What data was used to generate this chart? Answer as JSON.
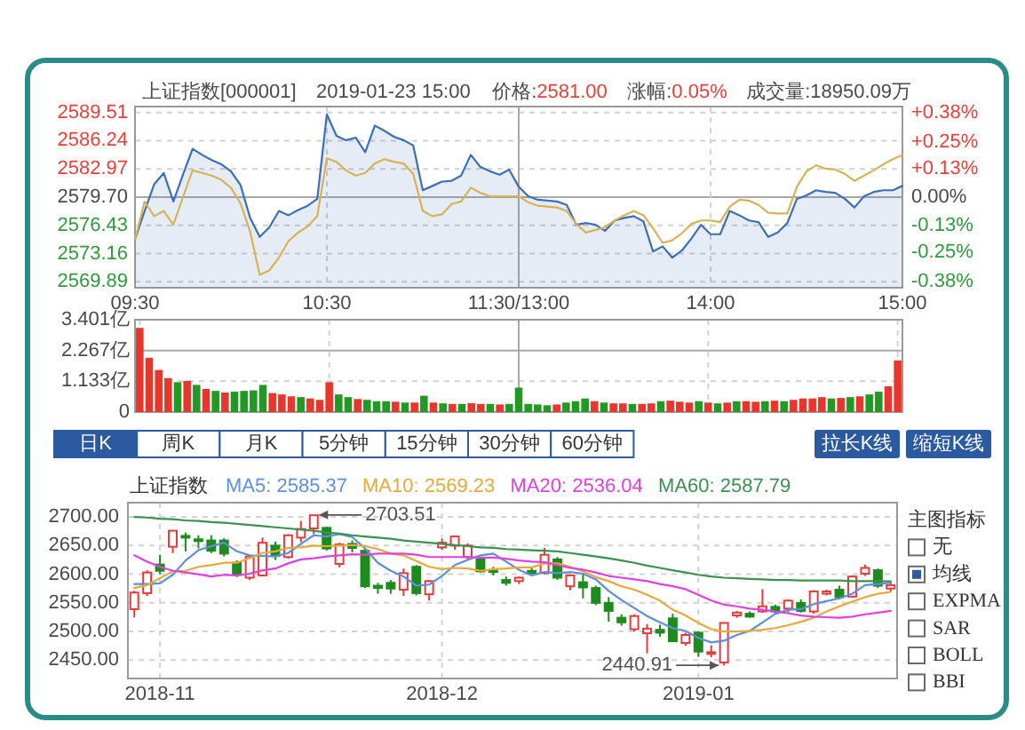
{
  "chart_data": [
    {
      "type": "line",
      "title": "上证指数[000001]",
      "annotations": [
        "2019-01-23 15:00",
        "价格:2581.00",
        "涨幅:0.05%",
        "成交量:18950.09万"
      ],
      "categories": [
        "09:30",
        null,
        null,
        null,
        null,
        null,
        null,
        null,
        null,
        null,
        null,
        null,
        null,
        null,
        null,
        null,
        null,
        null,
        null,
        null,
        "10:30",
        null,
        null,
        null,
        null,
        null,
        null,
        null,
        null,
        null,
        null,
        null,
        null,
        null,
        null,
        null,
        null,
        null,
        null,
        null,
        "11:30/13:00",
        null,
        null,
        null,
        null,
        null,
        null,
        null,
        null,
        null,
        null,
        null,
        null,
        null,
        null,
        null,
        null,
        null,
        null,
        null,
        "14:00",
        null,
        null,
        null,
        null,
        null,
        null,
        null,
        null,
        null,
        null,
        null,
        null,
        null,
        null,
        null,
        null,
        null,
        null,
        null,
        "15:00"
      ],
      "ylim": [
        2569.2,
        2590.2
      ],
      "yticks": [
        2569.89,
        2573.16,
        2576.43,
        {
          "value": 2579.7,
          "label": "2579.70"
        },
        2582.97,
        2586.24,
        2589.51
      ],
      "y2lim": [
        -0.41,
        0.41
      ],
      "y2ticks": [
        {
          "value": -0.38,
          "label": "-0.38%"
        },
        {
          "value": -0.25,
          "label": "-0.25%"
        },
        {
          "value": -0.13,
          "label": "-0.13%"
        },
        {
          "value": 0,
          "label": "0.00%"
        },
        {
          "value": 0.13,
          "label": "+0.13%"
        },
        {
          "value": 0.25,
          "label": "+0.25%"
        },
        {
          "value": 0.38,
          "label": "+0.38%"
        }
      ],
      "grid": true,
      "series": [
        {
          "type": "area",
          "color": "#3b6fb6",
          "values": [
            2574.8,
            2578.1,
            2581.2,
            2582.5,
            2579.2,
            2582.3,
            2585.3,
            2584.6,
            2584.0,
            2583.5,
            2582.7,
            2581.1,
            2577.3,
            2575.1,
            2576.2,
            2578.1,
            2577.6,
            2578.2,
            2578.7,
            2579.5,
            2589.3,
            2586.8,
            2586.3,
            2586.6,
            2584.9,
            2588.0,
            2587.4,
            2586.7,
            2586.3,
            2585.7,
            2580.5,
            2581.0,
            2581.5,
            2581.6,
            2582.2,
            2584.6,
            2583.2,
            2582.7,
            2582.3,
            2582.9,
            2580.9,
            2579.8,
            2579.4,
            2579.3,
            2579.2,
            2578.8,
            2576.5,
            2576.7,
            2576.5,
            2575.8,
            2577.0,
            2577.3,
            2577.5,
            2576.9,
            2573.4,
            2574.0,
            2572.7,
            2573.5,
            2574.9,
            2576.5,
            2575.4,
            2575.4,
            2578.1,
            2577.6,
            2577.0,
            2576.8,
            2575.1,
            2575.6,
            2576.7,
            2579.5,
            2579.9,
            2580.5,
            2580.3,
            2580.2,
            2579.5,
            2578.5,
            2579.8,
            2580.3,
            2580.5,
            2580.5,
            2581.0
          ]
        },
        {
          "type": "line",
          "color": "#d9b255",
          "values": [
            2574.8,
            2579.2,
            2577.5,
            2578.1,
            2576.5,
            2579.7,
            2582.8,
            2582.5,
            2582.2,
            2581.7,
            2580.8,
            2579.0,
            2575.7,
            2570.7,
            2571.2,
            2572.7,
            2574.6,
            2575.6,
            2576.3,
            2577.5,
            2584.2,
            2583.8,
            2582.8,
            2582.2,
            2582.5,
            2583.6,
            2584.1,
            2583.8,
            2583.6,
            2582.4,
            2578.1,
            2577.5,
            2577.7,
            2578.9,
            2579.2,
            2580.8,
            2580.2,
            2579.8,
            2579.8,
            2579.8,
            2579.8,
            2579.1,
            2578.7,
            2578.6,
            2578.5,
            2578.1,
            2576.6,
            2575.6,
            2575.9,
            2576.2,
            2577.0,
            2577.6,
            2578.1,
            2577.6,
            2576.1,
            2574.4,
            2574.7,
            2575.5,
            2576.6,
            2577.0,
            2577.0,
            2576.8,
            2578.6,
            2579.4,
            2579.3,
            2578.8,
            2577.9,
            2577.8,
            2577.8,
            2580.9,
            2582.7,
            2583.4,
            2583.0,
            2582.9,
            2582.4,
            2581.6,
            2582.2,
            2582.8,
            2583.5,
            2584.1,
            2584.6
          ]
        }
      ]
    },
    {
      "type": "bar",
      "tick_labels": "y",
      "grid": true,
      "categories": [
        null,
        null,
        null,
        null,
        null,
        null,
        null,
        null,
        null,
        null,
        null,
        null,
        null,
        null,
        null,
        null,
        null,
        null,
        null,
        null,
        null,
        null,
        null,
        null,
        null,
        null,
        null,
        null,
        null,
        null,
        null,
        null,
        null,
        null,
        null,
        null,
        null,
        null,
        null,
        null,
        null,
        null,
        null,
        null,
        null,
        null,
        null,
        null,
        null,
        null,
        null,
        null,
        null,
        null,
        null,
        null,
        null,
        null,
        null,
        null,
        null,
        null,
        null,
        null,
        null,
        null,
        null,
        null,
        null,
        null,
        null,
        null,
        null,
        null,
        null,
        null,
        null,
        null,
        null,
        null,
        null
      ],
      "ylim": [
        0,
        3.401
      ],
      "yticks": [
        0,
        {
          "value": 1.133,
          "label": "1.133亿"
        },
        {
          "value": 2.267,
          "label": "2.267亿"
        },
        {
          "value": 3.401,
          "label": "3.401亿"
        }
      ],
      "values": [
        3.1,
        2.0,
        1.55,
        1.25,
        1.1,
        1.15,
        1.0,
        0.85,
        0.78,
        0.72,
        0.75,
        0.78,
        0.8,
        1.0,
        0.7,
        0.65,
        0.58,
        0.55,
        0.5,
        0.45,
        1.1,
        0.65,
        0.55,
        0.48,
        0.45,
        0.4,
        0.4,
        0.38,
        0.35,
        0.35,
        0.6,
        0.35,
        0.32,
        0.3,
        0.3,
        0.33,
        0.3,
        0.3,
        0.28,
        0.3,
        0.9,
        0.3,
        0.28,
        0.25,
        0.28,
        0.35,
        0.4,
        0.5,
        0.4,
        0.35,
        0.32,
        0.32,
        0.3,
        0.3,
        0.32,
        0.4,
        0.42,
        0.38,
        0.35,
        0.4,
        0.35,
        0.32,
        0.35,
        0.4,
        0.4,
        0.38,
        0.4,
        0.42,
        0.4,
        0.45,
        0.5,
        0.5,
        0.55,
        0.5,
        0.52,
        0.55,
        0.58,
        0.65,
        0.75,
        0.95,
        1.9
      ],
      "colors": [
        "#e8362d",
        "#e8362d",
        "#e8362d",
        "#e8362d",
        "#229922",
        "#e8362d",
        "#229922",
        "#e8362d",
        "#229922",
        "#e8362d",
        "#229922",
        "#229922",
        "#229922",
        "#229922",
        "#e8362d",
        "#e8362d",
        "#e8362d",
        "#229922",
        "#e8362d",
        "#e8362d",
        "#e8362d",
        "#229922",
        "#229922",
        "#e8362d",
        "#229922",
        "#229922",
        "#229922",
        "#e8362d",
        "#229922",
        "#e8362d",
        "#229922",
        "#e8362d",
        "#229922",
        "#e8362d",
        "#229922",
        "#e8362d",
        "#e8362d",
        "#229922",
        "#e8362d",
        "#229922",
        "#229922",
        "#229922",
        "#229922",
        "#229922",
        "#e8362d",
        "#229922",
        "#229922",
        "#229922",
        "#e8362d",
        "#229922",
        "#e8362d",
        "#e8362d",
        "#229922",
        "#e8362d",
        "#e8362d",
        "#229922",
        "#e8362d",
        "#e8362d",
        "#e8362d",
        "#229922",
        "#e8362d",
        "#229922",
        "#e8362d",
        "#229922",
        "#e8362d",
        "#e8362d",
        "#229922",
        "#e8362d",
        "#229922",
        "#e8362d",
        "#e8362d",
        "#e8362d",
        "#e8362d",
        "#229922",
        "#e8362d",
        "#229922",
        "#e8362d",
        "#229922",
        "#229922",
        "#e8362d",
        "#e8362d"
      ]
    },
    {
      "type": "candlestick",
      "title": "上证指数",
      "grid": true,
      "legend": "top",
      "categories": [
        null,
        null,
        "2018-11",
        null,
        null,
        null,
        null,
        null,
        null,
        null,
        null,
        null,
        null,
        null,
        null,
        null,
        null,
        null,
        null,
        null,
        null,
        null,
        null,
        null,
        "2018-12",
        null,
        null,
        null,
        null,
        null,
        null,
        null,
        null,
        null,
        null,
        null,
        null,
        null,
        null,
        null,
        null,
        null,
        null,
        null,
        "2019-01",
        null,
        null,
        null,
        null,
        null,
        null,
        null,
        null,
        null,
        null,
        null,
        null,
        null,
        null,
        null
      ],
      "ylim": [
        2418,
        2725
      ],
      "yticks": [
        {
          "value": 2450,
          "label": "2450.00"
        },
        {
          "value": 2500,
          "label": "2500.00"
        },
        {
          "value": 2550,
          "label": "2550.00"
        },
        {
          "value": 2600,
          "label": "2600.00"
        },
        {
          "value": 2650,
          "label": "2650.00"
        },
        {
          "value": 2700,
          "label": "2700.00"
        }
      ],
      "annotations": [
        "2703.51",
        "2440.91"
      ],
      "series": [
        {
          "type": "candlestick",
          "ohlc": [
            [
              2539,
              2571,
              2525,
              2568
            ],
            [
              2567,
              2607,
              2562,
              2603
            ],
            [
              2617,
              2634,
              2600,
              2606
            ],
            [
              2648,
              2677,
              2637,
              2676
            ],
            [
              2667,
              2673,
              2640,
              2665
            ],
            [
              2661,
              2668,
              2645,
              2659
            ],
            [
              2659,
              2668,
              2637,
              2641
            ],
            [
              2659,
              2663,
              2631,
              2636
            ],
            [
              2620,
              2624,
              2595,
              2599
            ],
            [
              2594,
              2632,
              2590,
              2631
            ],
            [
              2598,
              2664,
              2596,
              2655
            ],
            [
              2650,
              2657,
              2625,
              2632
            ],
            [
              2630,
              2670,
              2627,
              2668
            ],
            [
              2664,
              2693,
              2656,
              2679
            ],
            [
              2680,
              2703.51,
              2670,
              2703
            ],
            [
              2681,
              2683,
              2641,
              2645
            ],
            [
              2618,
              2655,
              2612,
              2652
            ],
            [
              2653,
              2659,
              2638,
              2646
            ],
            [
              2641,
              2645,
              2576,
              2579
            ],
            [
              2580,
              2585,
              2566,
              2576
            ],
            [
              2585,
              2590,
              2566,
              2575
            ],
            [
              2573,
              2610,
              2562,
              2602
            ],
            [
              2613,
              2616,
              2563,
              2567
            ],
            [
              2565,
              2590,
              2554,
              2588
            ],
            [
              2647,
              2662,
              2643,
              2655
            ],
            [
              2650,
              2667,
              2643,
              2666
            ],
            [
              2630,
              2654,
              2626,
              2650
            ],
            [
              2626,
              2630,
              2603,
              2605
            ],
            [
              2607,
              2613,
              2598,
              2606
            ],
            [
              2590,
              2596,
              2580,
              2585
            ],
            [
              2588,
              2596,
              2583,
              2594
            ],
            [
              2606,
              2612,
              2598,
              2602
            ],
            [
              2602,
              2646,
              2600,
              2634
            ],
            [
              2626,
              2630,
              2590,
              2594
            ],
            [
              2579,
              2600,
              2572,
              2598
            ],
            [
              2586,
              2600,
              2558,
              2577
            ],
            [
              2576,
              2580,
              2546,
              2550
            ],
            [
              2550,
              2560,
              2517,
              2536
            ],
            [
              2524,
              2530,
              2510,
              2516
            ],
            [
              2504,
              2530,
              2500,
              2527
            ],
            [
              2497,
              2513,
              2462,
              2505
            ],
            [
              2503,
              2512,
              2491,
              2498
            ],
            [
              2523,
              2531,
              2482,
              2483
            ],
            [
              2480,
              2498,
              2475,
              2494
            ],
            [
              2498,
              2500,
              2456,
              2465
            ],
            [
              2461,
              2476,
              2455,
              2464
            ],
            [
              2446,
              2515,
              2440.91,
              2515
            ],
            [
              2528,
              2536,
              2524,
              2533
            ],
            [
              2531,
              2535,
              2524,
              2526
            ],
            [
              2535,
              2574,
              2533,
              2544
            ],
            [
              2543,
              2547,
              2530,
              2535
            ],
            [
              2540,
              2556,
              2533,
              2554
            ],
            [
              2550,
              2556,
              2533,
              2536
            ],
            [
              2535,
              2572,
              2531,
              2570
            ],
            [
              2566,
              2573,
              2563,
              2570
            ],
            [
              2573,
              2580,
              2556,
              2560
            ],
            [
              2561,
              2598,
              2559,
              2596
            ],
            [
              2601,
              2617,
              2597,
              2611
            ],
            [
              2607,
              2610,
              2576,
              2580
            ],
            [
              2575,
              2587,
              2570,
              2581
            ]
          ],
          "colors": [
            "#e83a3a",
            "#e83a3a",
            "#1d8c1d",
            "#e83a3a",
            "#1d8c1d",
            "#1d8c1d",
            "#1d8c1d",
            "#1d8c1d",
            "#1d8c1d",
            "#e83a3a",
            "#e83a3a",
            "#1d8c1d",
            "#e83a3a",
            "#e83a3a",
            "#e83a3a",
            "#1d8c1d",
            "#e83a3a",
            "#1d8c1d",
            "#1d8c1d",
            "#1d8c1d",
            "#1d8c1d",
            "#e83a3a",
            "#1d8c1d",
            "#e83a3a",
            "#e83a3a",
            "#e83a3a",
            "#e83a3a",
            "#1d8c1d",
            "#1d8c1d",
            "#1d8c1d",
            "#e83a3a",
            "#1d8c1d",
            "#e83a3a",
            "#1d8c1d",
            "#e83a3a",
            "#1d8c1d",
            "#1d8c1d",
            "#1d8c1d",
            "#1d8c1d",
            "#e83a3a",
            "#e83a3a",
            "#1d8c1d",
            "#1d8c1d",
            "#e83a3a",
            "#1d8c1d",
            "#e83a3a",
            "#e83a3a",
            "#e83a3a",
            "#1d8c1d",
            "#e83a3a",
            "#1d8c1d",
            "#e83a3a",
            "#1d8c1d",
            "#e83a3a",
            "#e83a3a",
            "#1d8c1d",
            "#e83a3a",
            "#e83a3a",
            "#1d8c1d",
            "#e83a3a"
          ]
        },
        {
          "type": "line",
          "name": "MA5: 2585.37",
          "color": "#5b8fe0",
          "values": [
            2583,
            2583,
            2584,
            2599,
            2624,
            2642,
            2649,
            2655,
            2640,
            2633,
            2632,
            2631,
            2637,
            2653,
            2668,
            2666,
            2670,
            2665,
            2645,
            2620,
            2606,
            2596,
            2580,
            2582,
            2597,
            2616,
            2625,
            2633,
            2636,
            2622,
            2608,
            2598,
            2604,
            2602,
            2604,
            2601,
            2591,
            2571,
            2555,
            2541,
            2527,
            2516,
            2506,
            2501,
            2489,
            2481,
            2484,
            2494,
            2501,
            2516,
            2531,
            2538,
            2539,
            2548,
            2553,
            2558,
            2566,
            2581,
            2583,
            2585.37
          ]
        },
        {
          "type": "line",
          "name": "MA10: 2569.23",
          "color": "#e8a93a",
          "values": [
            2576,
            2581,
            2593,
            2605,
            2606,
            2613,
            2616,
            2620,
            2620,
            2628,
            2637,
            2640,
            2646,
            2647,
            2650,
            2649,
            2650,
            2651,
            2649,
            2644,
            2636,
            2633,
            2623,
            2613,
            2609,
            2611,
            2610,
            2606,
            2609,
            2610,
            2612,
            2612,
            2619,
            2619,
            2613,
            2605,
            2595,
            2588,
            2579,
            2573,
            2564,
            2554,
            2538,
            2528,
            2515,
            2504,
            2500,
            2500,
            2501,
            2503,
            2506,
            2511,
            2517,
            2524,
            2535,
            2544,
            2552,
            2560,
            2566,
            2569.23
          ]
        },
        {
          "type": "line",
          "name": "MA20: 2536.04",
          "color": "#e040e0",
          "values": [
            2633,
            2622,
            2613,
            2606,
            2603,
            2600,
            2596,
            2599,
            2598,
            2601,
            2607,
            2610,
            2619,
            2626,
            2628,
            2631,
            2633,
            2635,
            2634,
            2636,
            2636,
            2636,
            2634,
            2630,
            2630,
            2630,
            2630,
            2629,
            2629,
            2627,
            2624,
            2622,
            2621,
            2616,
            2611,
            2608,
            2603,
            2597,
            2594,
            2591,
            2588,
            2583,
            2579,
            2574,
            2564,
            2554,
            2547,
            2544,
            2540,
            2538,
            2535,
            2532,
            2528,
            2526,
            2525,
            2524,
            2526,
            2530,
            2533,
            2536.04
          ]
        },
        {
          "type": "line",
          "name": "MA60: 2587.79",
          "color": "#3b9150",
          "values": [
            2700,
            2699,
            2697,
            2696,
            2694,
            2693,
            2691,
            2690,
            2688,
            2686,
            2684,
            2682,
            2680,
            2678,
            2676,
            2673,
            2671,
            2668,
            2666,
            2664,
            2662,
            2659,
            2657,
            2655,
            2653,
            2651,
            2649,
            2647,
            2646,
            2644,
            2643,
            2642,
            2641,
            2640,
            2637,
            2634,
            2631,
            2628,
            2624,
            2620,
            2615,
            2611,
            2607,
            2603,
            2599,
            2596,
            2594,
            2593,
            2592,
            2591,
            2590,
            2590,
            2589,
            2589,
            2589,
            2589,
            2588,
            2588,
            2588,
            2587.79
          ]
        }
      ]
    },
    {
      "type": "other",
      "annotations": [
        "日K",
        "周K",
        "月K",
        "5分钟",
        "15分钟",
        "30分钟",
        "60分钟"
      ]
    },
    {
      "type": "other",
      "annotations": [
        "拉长K线",
        "缩短K线"
      ]
    },
    {
      "type": "other",
      "title": "主图指标",
      "annotations": [
        "无",
        "均线",
        "EXPMA",
        "SAR",
        "BOLL",
        "BBI"
      ]
    }
  ]
}
